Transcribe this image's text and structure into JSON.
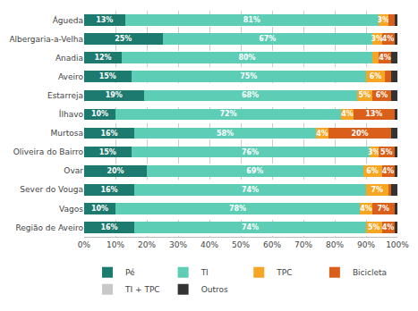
{
  "chart_data": {
    "type": "bar",
    "orientation": "horizontal",
    "stacked": true,
    "data_labels": true,
    "grid": true,
    "legend": "bottom",
    "categories": [
      "Águeda",
      "Albergaria-a-Velha",
      "Anadia",
      "Aveiro",
      "Estarreja",
      "Ílhavo",
      "Murtosa",
      "Oliveira do Bairro",
      "Ovar",
      "Sever do Vouga",
      "Vagos",
      "Região de Aveiro"
    ],
    "series": [
      {
        "name": "Pé",
        "color": "#1d7a6e",
        "values": [
          13,
          25,
          12,
          15,
          19,
          10,
          16,
          15,
          20,
          16,
          10,
          16
        ],
        "value_labels": [
          "13%",
          "25%",
          "12%",
          "15%",
          "19%",
          "10%",
          "16%",
          "15%",
          "20%",
          "16%",
          "10%",
          "16%"
        ]
      },
      {
        "name": "TI",
        "color": "#5ecdb5",
        "values": [
          81,
          67,
          80,
          75,
          68,
          72,
          58,
          76,
          69,
          74,
          78,
          74
        ],
        "value_labels": [
          "81%",
          "67%",
          "80%",
          "75%",
          "68%",
          "72%",
          "58%",
          "76%",
          "69%",
          "74%",
          "78%",
          "74%"
        ]
      },
      {
        "name": "TPC",
        "color": "#f5a623",
        "values": [
          3,
          3,
          2,
          6,
          5,
          4,
          4,
          3,
          6,
          7,
          4,
          5
        ],
        "value_labels": [
          "3%",
          "3%",
          null,
          "6%",
          "5%",
          "4%",
          "4%",
          "3%",
          "6%",
          "7%",
          "4%",
          "5%"
        ]
      },
      {
        "name": "Bicicleta",
        "color": "#d95f1a",
        "values": [
          2,
          4,
          4,
          2,
          6,
          13,
          20,
          5,
          4,
          1,
          7,
          4
        ],
        "value_labels": [
          null,
          "4%",
          "4%",
          null,
          "6%",
          "13%",
          "20%",
          "5%",
          "4%",
          null,
          "7%",
          "4%"
        ]
      },
      {
        "name": "TI + TPC",
        "color": "#c8c8c8",
        "values": [
          0,
          0,
          0,
          0,
          0,
          0,
          0,
          0,
          0,
          0,
          0,
          0
        ]
      },
      {
        "name": "Outros",
        "color": "#333333",
        "values": [
          1,
          1,
          2,
          2,
          2,
          1,
          2,
          1,
          1,
          2,
          1,
          1
        ]
      }
    ],
    "xlim": [
      0,
      100
    ],
    "xticks": [
      {
        "value": 0,
        "label": "0%"
      },
      {
        "value": 10,
        "label": "10%"
      },
      {
        "value": 20,
        "label": "20%"
      },
      {
        "value": 30,
        "label": "30%"
      },
      {
        "value": 40,
        "label": "40%"
      },
      {
        "value": 50,
        "label": "50%"
      },
      {
        "value": 60,
        "label": "60%"
      },
      {
        "value": 70,
        "label": "70%"
      },
      {
        "value": 80,
        "label": "80%"
      },
      {
        "value": 90,
        "label": "90%"
      },
      {
        "value": 100,
        "label": "100%"
      }
    ]
  }
}
